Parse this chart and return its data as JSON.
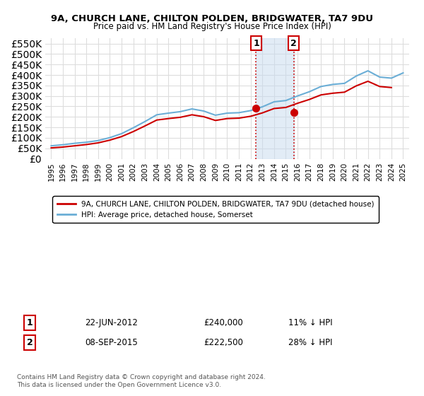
{
  "title": "9A, CHURCH LANE, CHILTON POLDEN, BRIDGWATER, TA7 9DU",
  "subtitle": "Price paid vs. HM Land Registry's House Price Index (HPI)",
  "legend_line1": "9A, CHURCH LANE, CHILTON POLDEN, BRIDGWATER, TA7 9DU (detached house)",
  "legend_line2": "HPI: Average price, detached house, Somerset",
  "sale1_label": "1",
  "sale1_date": "22-JUN-2012",
  "sale1_price": "£240,000",
  "sale1_hpi": "11% ↓ HPI",
  "sale1_year": 2012.47,
  "sale1_value": 240000,
  "sale2_label": "2",
  "sale2_date": "08-SEP-2015",
  "sale2_price": "£222,500",
  "sale2_hpi": "28% ↓ HPI",
  "sale2_year": 2015.68,
  "sale2_value": 222500,
  "hpi_color": "#6baed6",
  "price_color": "#cc0000",
  "marker_color": "#cc0000",
  "shade_color": "#c6dbef",
  "grid_color": "#dddddd",
  "background_color": "#ffffff",
  "ylim_min": 0,
  "ylim_max": 575000,
  "yticks": [
    0,
    50000,
    100000,
    150000,
    200000,
    250000,
    300000,
    350000,
    400000,
    450000,
    500000,
    550000
  ],
  "hpi_years": [
    1995,
    1996,
    1997,
    1998,
    1999,
    2000,
    2001,
    2002,
    2003,
    2004,
    2005,
    2006,
    2007,
    2008,
    2009,
    2010,
    2011,
    2012,
    2013,
    2014,
    2015,
    2016,
    2017,
    2018,
    2019,
    2020,
    2021,
    2022,
    2023,
    2024,
    2025
  ],
  "hpi_values": [
    62000,
    67000,
    74000,
    79000,
    87000,
    101000,
    120000,
    148000,
    178000,
    210000,
    218000,
    225000,
    238000,
    228000,
    208000,
    218000,
    220000,
    230000,
    248000,
    272000,
    278000,
    300000,
    320000,
    345000,
    355000,
    360000,
    395000,
    420000,
    390000,
    385000,
    410000
  ],
  "price_years": [
    1995,
    1996,
    1997,
    1998,
    1999,
    2000,
    2001,
    2002,
    2003,
    2004,
    2005,
    2006,
    2007,
    2008,
    2009,
    2010,
    2011,
    2012,
    2013,
    2014,
    2015,
    2016,
    2017,
    2018,
    2019,
    2020,
    2021,
    2022,
    2023,
    2024
  ],
  "price_values": [
    52000,
    56000,
    62000,
    68000,
    76000,
    89000,
    106000,
    130000,
    157000,
    185000,
    192000,
    198000,
    210000,
    201000,
    183000,
    192000,
    194000,
    203000,
    219000,
    240000,
    245000,
    265000,
    283000,
    305000,
    313000,
    318000,
    348000,
    370000,
    345000,
    340000
  ],
  "footnote1": "Contains HM Land Registry data © Crown copyright and database right 2024.",
  "footnote2": "This data is licensed under the Open Government Licence v3.0."
}
